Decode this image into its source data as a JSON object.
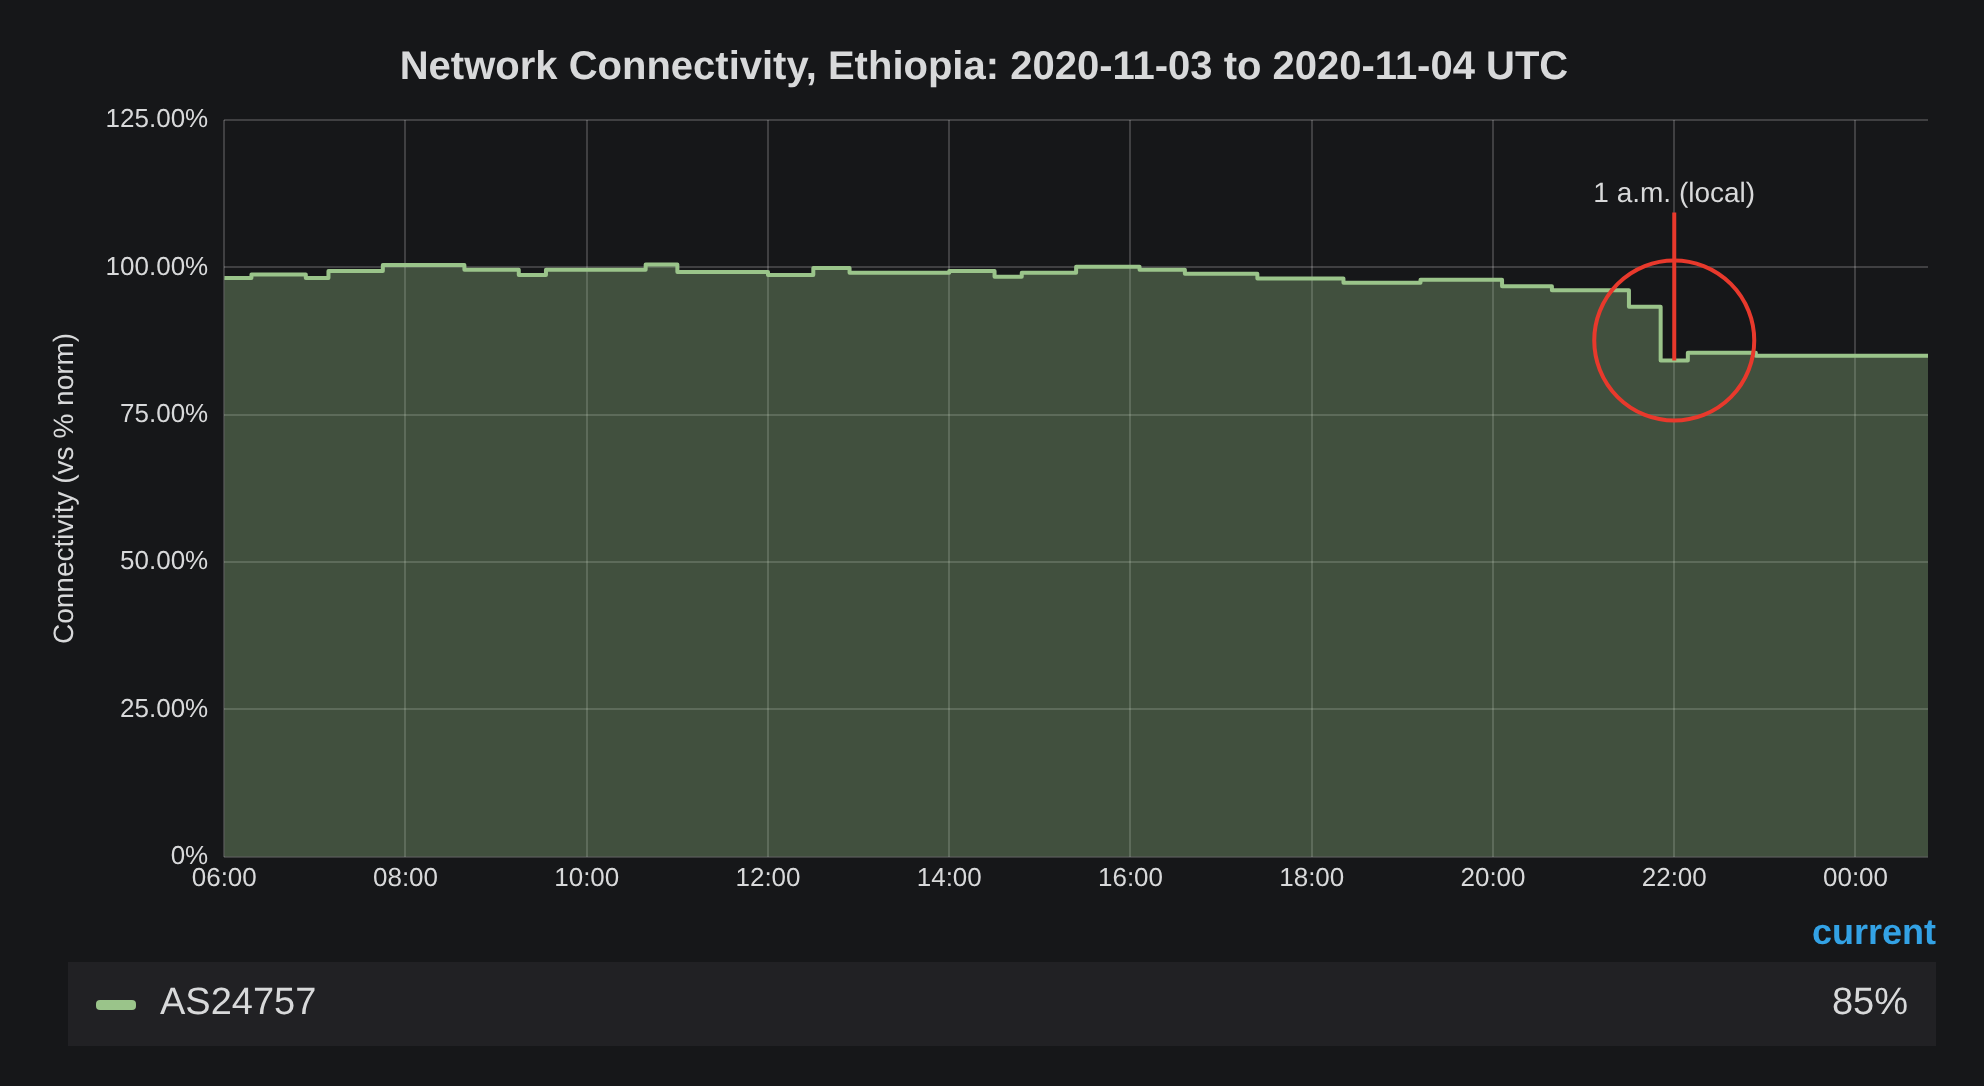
{
  "chart_data": {
    "type": "area",
    "title": "Network Connectivity, Ethiopia: 2020-11-03 to 2020-11-04 UTC",
    "ylabel": "Connectivity (vs % norm)",
    "x": [
      6,
      6.3,
      6.3,
      6.9,
      6.9,
      7.15,
      7.15,
      7.75,
      7.75,
      8.65,
      8.65,
      9.25,
      9.25,
      9.55,
      9.55,
      10.65,
      10.65,
      11.0,
      11.0,
      12.0,
      12.0,
      12.5,
      12.5,
      12.9,
      12.9,
      14.0,
      14.0,
      14.5,
      14.5,
      14.8,
      14.8,
      15.4,
      15.4,
      16.1,
      16.1,
      16.6,
      16.6,
      17.4,
      17.4,
      18.35,
      18.35,
      19.2,
      19.2,
      20.1,
      20.1,
      20.65,
      20.65,
      21.5,
      21.5,
      21.85,
      21.85,
      22.15,
      22.15,
      22.9,
      22.9,
      24.8
    ],
    "series": [
      {
        "name": "AS24757",
        "color": "#9ac48a",
        "values": [
          98.2,
          98.2,
          98.8,
          98.8,
          98.2,
          98.2,
          99.4,
          99.4,
          100.4,
          100.4,
          99.6,
          99.6,
          98.7,
          98.7,
          99.6,
          99.6,
          100.5,
          100.5,
          99.2,
          99.2,
          98.7,
          98.7,
          99.9,
          99.9,
          99.1,
          99.1,
          99.4,
          99.4,
          98.4,
          98.4,
          99.1,
          99.1,
          100.1,
          100.1,
          99.6,
          99.6,
          98.9,
          98.9,
          98.1,
          98.1,
          97.4,
          97.4,
          97.9,
          97.9,
          96.8,
          96.8,
          96.1,
          96.1,
          93.3,
          93.3,
          84.2,
          84.2,
          85.5,
          85.5,
          85,
          85
        ]
      }
    ],
    "xlim": [
      6,
      24.8
    ],
    "xticks": [
      {
        "value": 6,
        "label": "06:00"
      },
      {
        "value": 8,
        "label": "08:00"
      },
      {
        "value": 10,
        "label": "10:00"
      },
      {
        "value": 12,
        "label": "12:00"
      },
      {
        "value": 14,
        "label": "14:00"
      },
      {
        "value": 16,
        "label": "16:00"
      },
      {
        "value": 18,
        "label": "18:00"
      },
      {
        "value": 20,
        "label": "20:00"
      },
      {
        "value": 22,
        "label": "22:00"
      },
      {
        "value": 24,
        "label": "00:00"
      }
    ],
    "ylim": [
      0,
      125
    ],
    "yticks": [
      {
        "value": 0,
        "label": "0%"
      },
      {
        "value": 25,
        "label": "25.00%"
      },
      {
        "value": 50,
        "label": "50.00%"
      },
      {
        "value": 75,
        "label": "75.00%"
      },
      {
        "value": 100,
        "label": "100.00%"
      },
      {
        "value": 125,
        "label": "125.00%"
      }
    ],
    "grid": true,
    "legend": "bottom",
    "marker": "none",
    "annotations": [
      {
        "text": "1 a.m. (local)",
        "x": 22,
        "y": 84.2
      },
      "current",
      "85%"
    ]
  }
}
